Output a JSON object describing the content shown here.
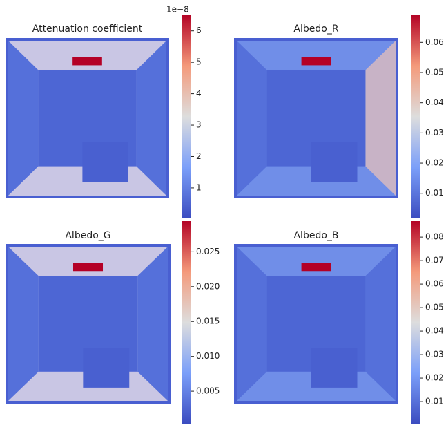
{
  "chart_data": [
    {
      "type": "heatmap",
      "title": "Attenuation coefficient",
      "colormap": "coolwarm",
      "offset_label": "1e−8",
      "clim": [
        0.03,
        6.5
      ],
      "ticks": [
        1,
        2,
        3,
        4,
        5,
        6
      ]
    },
    {
      "type": "heatmap",
      "title": "Albedo_R",
      "colormap": "coolwarm",
      "clim": [
        0.0017,
        0.069
      ],
      "ticks": [
        0.01,
        0.02,
        0.03,
        0.04,
        0.05,
        0.06
      ]
    },
    {
      "type": "heatmap",
      "title": "Albedo_G",
      "colormap": "coolwarm",
      "clim": [
        0.00035,
        0.0294
      ],
      "ticks": [
        0.005,
        {
          "value": 0.01,
          "label": "0.010"
        },
        0.015,
        {
          "value": 0.02,
          "label": "0.020"
        },
        0.025
      ]
    },
    {
      "type": "heatmap",
      "title": "Albedo_B",
      "colormap": "coolwarm",
      "clim": [
        0.0006,
        0.0868
      ],
      "ticks": [
        0.01,
        0.02,
        0.03,
        0.04,
        0.05,
        0.06,
        0.07,
        0.08
      ]
    }
  ]
}
